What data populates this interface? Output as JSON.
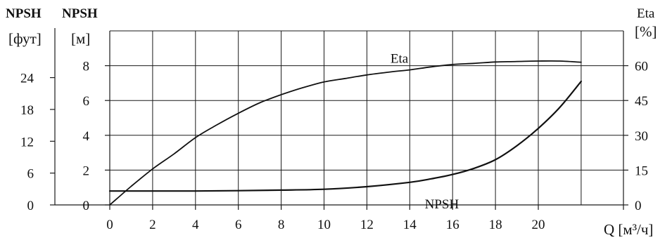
{
  "chart_data": {
    "type": "line",
    "x_label": "Q [м³/ч]",
    "x_ticks": [
      0,
      2,
      4,
      6,
      8,
      10,
      12,
      14,
      16,
      18,
      20
    ],
    "x_range": [
      0,
      22
    ],
    "left_axis_m": {
      "title": "NPSH",
      "unit": "[м]",
      "ticks": [
        0,
        2,
        4,
        6,
        8
      ],
      "range": [
        0,
        10
      ]
    },
    "left_axis_ft": {
      "title": "NPSH",
      "unit": "[фут]",
      "ticks": [
        0,
        6,
        12,
        18,
        24
      ],
      "range": [
        0,
        32.8
      ]
    },
    "right_axis": {
      "title": "Eta",
      "unit": "[%]",
      "ticks": [
        0,
        15,
        30,
        45,
        60
      ],
      "range": [
        0,
        75
      ]
    },
    "grid": true,
    "series": [
      {
        "name": "Eta",
        "axis": "right",
        "x": [
          0,
          1,
          2,
          3,
          4,
          5,
          6,
          7,
          8,
          9,
          10,
          11,
          12,
          13,
          14,
          15,
          16,
          17,
          18,
          19,
          20,
          21,
          22
        ],
        "y": [
          0,
          8,
          15.5,
          22,
          29,
          34.5,
          39.5,
          44,
          47.5,
          50.5,
          53,
          54.5,
          56,
          57.2,
          58.2,
          59.5,
          60.5,
          61,
          61.6,
          61.8,
          62,
          62,
          61.5
        ]
      },
      {
        "name": "NPSH",
        "axis": "left_m",
        "x": [
          0,
          2,
          4,
          6,
          8,
          10,
          12,
          14,
          15,
          16,
          17,
          18,
          19,
          20,
          21,
          22
        ],
        "y": [
          0.8,
          0.8,
          0.8,
          0.82,
          0.85,
          0.9,
          1.05,
          1.3,
          1.5,
          1.75,
          2.1,
          2.6,
          3.4,
          4.4,
          5.6,
          7.1
        ]
      }
    ]
  }
}
